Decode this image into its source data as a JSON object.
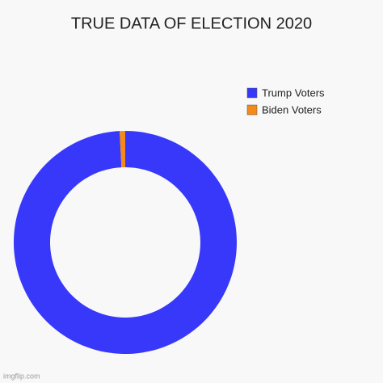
{
  "chart_data": {
    "type": "donut",
    "title": "TRUE DATA OF ELECTION 2020",
    "categories": [
      "Trump Voters",
      "Biden Voters"
    ],
    "values": [
      99.2,
      0.8
    ],
    "colors": [
      "#3838fa",
      "#f58a16"
    ],
    "legend": "top-right"
  },
  "watermark": "imgflip.com"
}
